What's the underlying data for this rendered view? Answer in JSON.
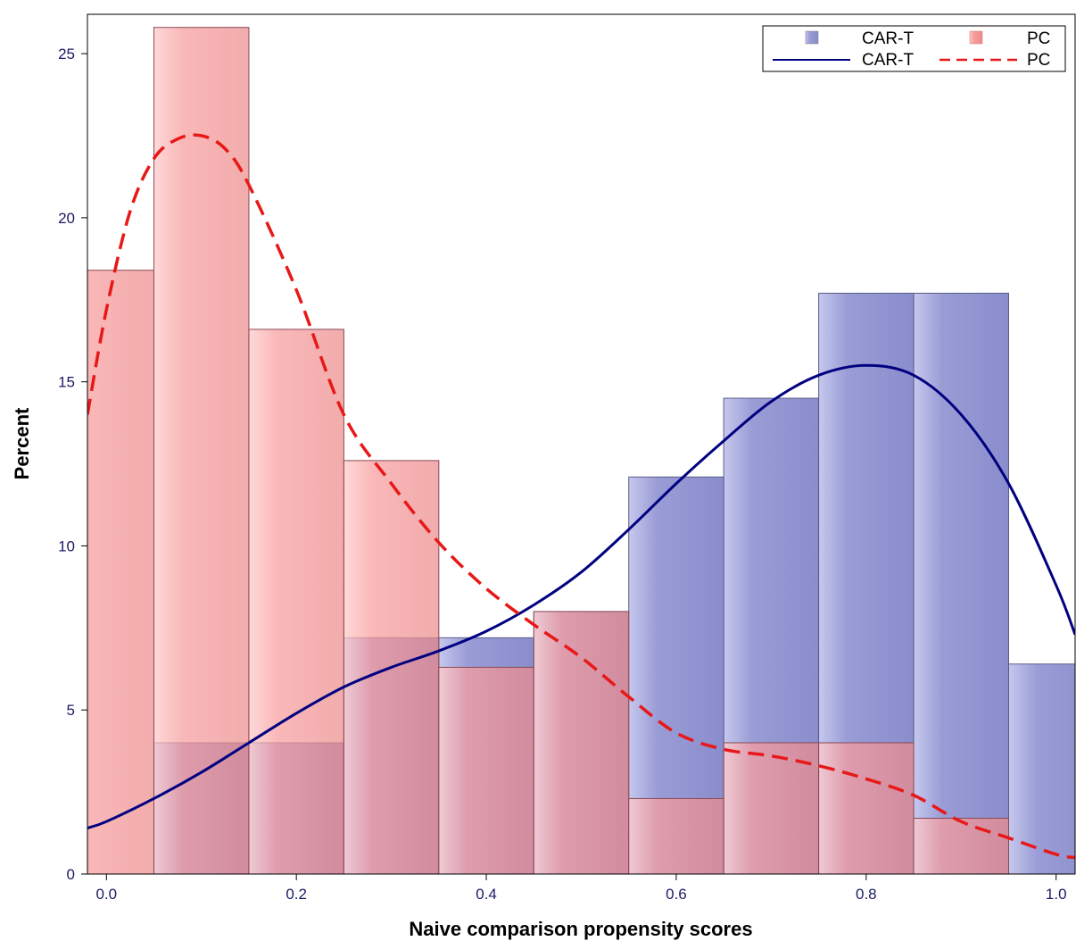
{
  "chart_data": {
    "type": "bar",
    "xlabel": "Naive comparison propensity scores",
    "ylabel": "Percent",
    "xlim": [
      -0.02,
      1.02
    ],
    "ylim": [
      0,
      26.2
    ],
    "x_ticks": [
      "0.0",
      "0.2",
      "0.4",
      "0.6",
      "0.8",
      "1.0"
    ],
    "y_ticks": [
      "0",
      "5",
      "10",
      "15",
      "20",
      "25"
    ],
    "bins": [
      [
        -0.05,
        0.05
      ],
      [
        0.05,
        0.15
      ],
      [
        0.15,
        0.25
      ],
      [
        0.25,
        0.35
      ],
      [
        0.35,
        0.45
      ],
      [
        0.45,
        0.55
      ],
      [
        0.55,
        0.65
      ],
      [
        0.65,
        0.75
      ],
      [
        0.75,
        0.85
      ],
      [
        0.85,
        0.95
      ],
      [
        0.95,
        1.05
      ]
    ],
    "series": [
      {
        "name": "CAR-T",
        "kind": "histogram",
        "color": "#8c8fd0",
        "values": [
          0,
          4.0,
          4.0,
          7.2,
          7.2,
          8.0,
          12.1,
          14.5,
          17.7,
          17.7,
          6.4
        ]
      },
      {
        "name": "PC",
        "kind": "histogram",
        "color": "#f48a8a",
        "values": [
          18.4,
          25.8,
          16.6,
          12.6,
          6.3,
          8.0,
          2.3,
          4.0,
          4.0,
          1.7,
          0
        ]
      },
      {
        "name": "CAR-T",
        "kind": "density",
        "color": "#000080",
        "x": [
          -0.02,
          0.0,
          0.05,
          0.1,
          0.15,
          0.2,
          0.25,
          0.3,
          0.35,
          0.4,
          0.45,
          0.5,
          0.55,
          0.6,
          0.65,
          0.7,
          0.75,
          0.8,
          0.85,
          0.9,
          0.95,
          1.0,
          1.02
        ],
        "y": [
          1.4,
          1.6,
          2.3,
          3.1,
          4.0,
          4.9,
          5.7,
          6.3,
          6.8,
          7.4,
          8.2,
          9.2,
          10.5,
          11.9,
          13.2,
          14.4,
          15.2,
          15.5,
          15.2,
          14.0,
          11.9,
          8.8,
          7.3
        ]
      },
      {
        "name": "PC",
        "kind": "density",
        "color": "#e81818",
        "dashed": true,
        "x": [
          -0.02,
          0.0,
          0.025,
          0.05,
          0.075,
          0.1,
          0.125,
          0.15,
          0.2,
          0.25,
          0.3,
          0.35,
          0.4,
          0.45,
          0.5,
          0.55,
          0.6,
          0.65,
          0.7,
          0.75,
          0.8,
          0.85,
          0.9,
          0.95,
          1.0,
          1.02
        ],
        "y": [
          14.0,
          17.2,
          20.2,
          21.8,
          22.4,
          22.5,
          22.1,
          21.0,
          17.8,
          14.0,
          11.9,
          10.1,
          8.7,
          7.6,
          6.6,
          5.4,
          4.3,
          3.8,
          3.6,
          3.3,
          2.9,
          2.4,
          1.6,
          1.1,
          0.6,
          0.5
        ]
      }
    ],
    "legend": {
      "position": "top-right",
      "entries": [
        "CAR-T",
        "PC",
        "CAR-T",
        "PC"
      ]
    }
  }
}
